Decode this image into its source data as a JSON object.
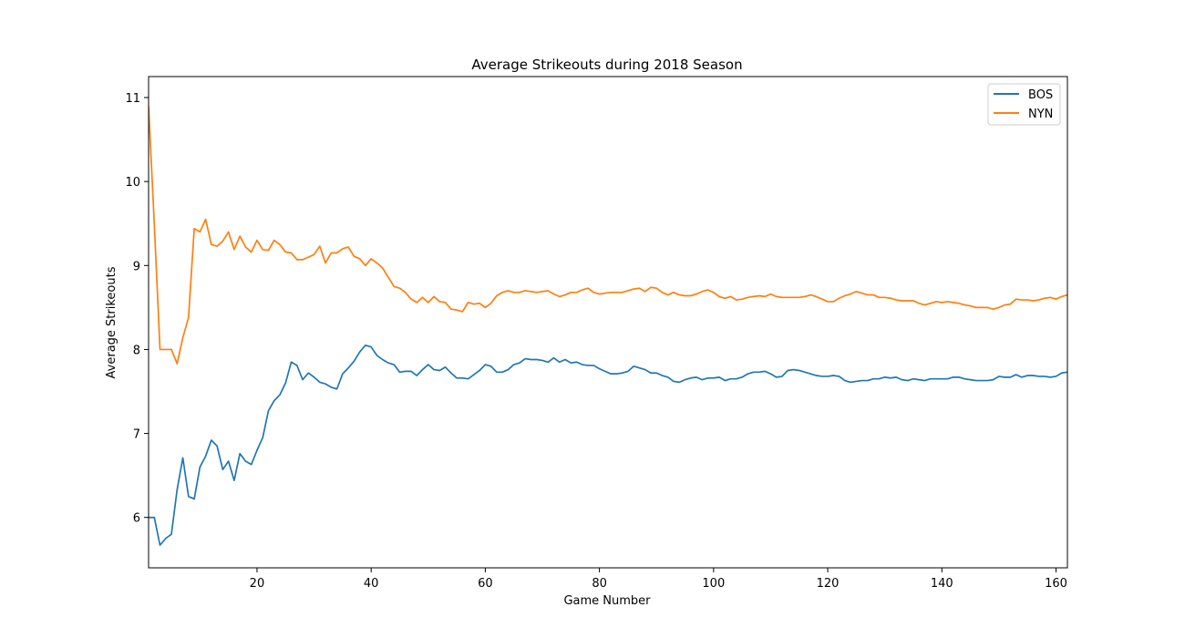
{
  "chart_data": {
    "type": "line",
    "title": "Average Strikeouts during 2018 Season",
    "xlabel": "Game Number",
    "ylabel": "Average Strikeouts",
    "xlim": [
      1,
      162
    ],
    "ylim": [
      5.4,
      11.25
    ],
    "xticks": [
      20,
      40,
      60,
      80,
      100,
      120,
      140,
      160
    ],
    "yticks": [
      6,
      7,
      8,
      9,
      10,
      11
    ],
    "grid": false,
    "legend_position": "top-right",
    "series": [
      {
        "name": "BOS",
        "color": "#1f77b4",
        "anchors": [
          [
            1,
            6.0
          ],
          [
            2,
            6.0
          ],
          [
            3,
            5.67
          ],
          [
            4,
            5.75
          ],
          [
            5,
            5.8
          ],
          [
            6,
            6.33
          ],
          [
            7,
            6.71
          ],
          [
            8,
            6.25
          ],
          [
            9,
            6.22
          ],
          [
            10,
            6.6
          ],
          [
            11,
            6.73
          ],
          [
            12,
            6.92
          ],
          [
            13,
            6.85
          ],
          [
            14,
            6.57
          ],
          [
            15,
            6.67
          ],
          [
            16,
            6.44
          ],
          [
            17,
            6.76
          ],
          [
            18,
            6.67
          ],
          [
            19,
            6.63
          ],
          [
            20,
            6.8
          ],
          [
            21,
            6.95
          ],
          [
            22,
            7.27
          ],
          [
            23,
            7.39
          ],
          [
            24,
            7.46
          ],
          [
            25,
            7.6
          ],
          [
            26,
            7.85
          ],
          [
            27,
            7.81
          ],
          [
            28,
            7.64
          ],
          [
            29,
            7.72
          ],
          [
            30,
            7.67
          ],
          [
            31,
            7.61
          ],
          [
            32,
            7.59
          ],
          [
            33,
            7.55
          ],
          [
            34,
            7.53
          ],
          [
            35,
            7.71
          ],
          [
            36,
            7.78
          ],
          [
            37,
            7.86
          ],
          [
            38,
            7.97
          ],
          [
            39,
            8.05
          ],
          [
            40,
            8.03
          ],
          [
            41,
            7.93
          ],
          [
            42,
            7.88
          ],
          [
            43,
            7.84
          ],
          [
            44,
            7.82
          ],
          [
            45,
            7.73
          ],
          [
            46,
            7.74
          ],
          [
            47,
            7.74
          ],
          [
            48,
            7.69
          ],
          [
            49,
            7.76
          ],
          [
            50,
            7.82
          ],
          [
            51,
            7.76
          ],
          [
            52,
            7.75
          ],
          [
            53,
            7.79
          ],
          [
            54,
            7.72
          ],
          [
            55,
            7.66
          ],
          [
            56,
            7.66
          ],
          [
            57,
            7.65
          ],
          [
            58,
            7.7
          ],
          [
            59,
            7.75
          ],
          [
            60,
            7.82
          ],
          [
            61,
            7.8
          ],
          [
            62,
            7.73
          ],
          [
            63,
            7.73
          ],
          [
            64,
            7.76
          ],
          [
            65,
            7.82
          ],
          [
            66,
            7.84
          ],
          [
            67,
            7.89
          ],
          [
            68,
            7.88
          ],
          [
            69,
            7.88
          ],
          [
            70,
            7.87
          ],
          [
            71,
            7.85
          ],
          [
            72,
            7.9
          ],
          [
            73,
            7.85
          ],
          [
            74,
            7.88
          ],
          [
            75,
            7.84
          ],
          [
            76,
            7.85
          ],
          [
            77,
            7.82
          ],
          [
            78,
            7.81
          ],
          [
            79,
            7.81
          ],
          [
            80,
            7.77
          ],
          [
            81,
            7.74
          ],
          [
            82,
            7.71
          ],
          [
            83,
            7.71
          ],
          [
            84,
            7.72
          ],
          [
            85,
            7.74
          ],
          [
            86,
            7.8
          ],
          [
            87,
            7.78
          ],
          [
            88,
            7.76
          ],
          [
            89,
            7.72
          ],
          [
            90,
            7.72
          ],
          [
            91,
            7.69
          ],
          [
            92,
            7.67
          ],
          [
            93,
            7.62
          ],
          [
            94,
            7.61
          ],
          [
            95,
            7.64
          ],
          [
            96,
            7.66
          ],
          [
            97,
            7.67
          ],
          [
            98,
            7.64
          ],
          [
            99,
            7.66
          ],
          [
            100,
            7.66
          ],
          [
            101,
            7.67
          ],
          [
            102,
            7.63
          ],
          [
            103,
            7.65
          ],
          [
            104,
            7.65
          ],
          [
            105,
            7.67
          ],
          [
            106,
            7.71
          ],
          [
            107,
            7.73
          ],
          [
            108,
            7.73
          ],
          [
            109,
            7.74
          ],
          [
            110,
            7.71
          ],
          [
            111,
            7.67
          ],
          [
            112,
            7.68
          ],
          [
            113,
            7.75
          ],
          [
            114,
            7.76
          ],
          [
            115,
            7.75
          ],
          [
            116,
            7.73
          ],
          [
            117,
            7.71
          ],
          [
            118,
            7.69
          ],
          [
            119,
            7.68
          ],
          [
            120,
            7.68
          ],
          [
            121,
            7.69
          ],
          [
            122,
            7.68
          ],
          [
            123,
            7.63
          ],
          [
            124,
            7.61
          ],
          [
            125,
            7.62
          ],
          [
            126,
            7.63
          ],
          [
            127,
            7.63
          ],
          [
            128,
            7.65
          ],
          [
            129,
            7.65
          ],
          [
            130,
            7.67
          ],
          [
            131,
            7.66
          ],
          [
            132,
            7.67
          ],
          [
            133,
            7.64
          ],
          [
            134,
            7.63
          ],
          [
            135,
            7.65
          ],
          [
            136,
            7.64
          ],
          [
            137,
            7.63
          ],
          [
            138,
            7.65
          ],
          [
            139,
            7.65
          ],
          [
            140,
            7.65
          ],
          [
            141,
            7.65
          ],
          [
            142,
            7.67
          ],
          [
            143,
            7.67
          ],
          [
            144,
            7.65
          ],
          [
            145,
            7.64
          ],
          [
            146,
            7.63
          ],
          [
            147,
            7.63
          ],
          [
            148,
            7.63
          ],
          [
            149,
            7.64
          ],
          [
            150,
            7.68
          ],
          [
            151,
            7.67
          ],
          [
            152,
            7.67
          ],
          [
            153,
            7.7
          ],
          [
            154,
            7.67
          ],
          [
            155,
            7.69
          ],
          [
            156,
            7.69
          ],
          [
            157,
            7.68
          ],
          [
            158,
            7.68
          ],
          [
            159,
            7.67
          ],
          [
            160,
            7.68
          ],
          [
            161,
            7.72
          ],
          [
            162,
            7.73
          ]
        ]
      },
      {
        "name": "NYN",
        "color": "#ff7f0e",
        "anchors": [
          [
            1,
            10.9
          ],
          [
            2,
            9.5
          ],
          [
            3,
            8.0
          ],
          [
            4,
            8.0
          ],
          [
            5,
            8.0
          ],
          [
            6,
            7.83
          ],
          [
            7,
            8.14
          ],
          [
            8,
            8.38
          ],
          [
            9,
            9.44
          ],
          [
            10,
            9.4
          ],
          [
            11,
            9.55
          ],
          [
            12,
            9.25
          ],
          [
            13,
            9.23
          ],
          [
            14,
            9.29
          ],
          [
            15,
            9.4
          ],
          [
            16,
            9.19
          ],
          [
            17,
            9.35
          ],
          [
            18,
            9.22
          ],
          [
            19,
            9.16
          ],
          [
            20,
            9.3
          ],
          [
            21,
            9.19
          ],
          [
            22,
            9.18
          ],
          [
            23,
            9.3
          ],
          [
            24,
            9.25
          ],
          [
            25,
            9.16
          ],
          [
            26,
            9.15
          ],
          [
            27,
            9.07
          ],
          [
            28,
            9.07
          ],
          [
            29,
            9.1
          ],
          [
            30,
            9.13
          ],
          [
            31,
            9.23
          ],
          [
            32,
            9.03
          ],
          [
            33,
            9.15
          ],
          [
            34,
            9.15
          ],
          [
            35,
            9.2
          ],
          [
            36,
            9.22
          ],
          [
            37,
            9.11
          ],
          [
            38,
            9.08
          ],
          [
            39,
            9.0
          ],
          [
            40,
            9.08
          ],
          [
            41,
            9.03
          ],
          [
            42,
            8.97
          ],
          [
            43,
            8.86
          ],
          [
            44,
            8.75
          ],
          [
            45,
            8.73
          ],
          [
            46,
            8.68
          ],
          [
            47,
            8.6
          ],
          [
            48,
            8.56
          ],
          [
            49,
            8.62
          ],
          [
            50,
            8.56
          ],
          [
            51,
            8.63
          ],
          [
            52,
            8.57
          ],
          [
            53,
            8.56
          ],
          [
            54,
            8.48
          ],
          [
            55,
            8.47
          ],
          [
            56,
            8.45
          ],
          [
            57,
            8.56
          ],
          [
            58,
            8.54
          ],
          [
            59,
            8.55
          ],
          [
            60,
            8.5
          ],
          [
            61,
            8.55
          ],
          [
            62,
            8.64
          ],
          [
            63,
            8.68
          ],
          [
            64,
            8.7
          ],
          [
            65,
            8.68
          ],
          [
            66,
            8.68
          ],
          [
            67,
            8.7
          ],
          [
            68,
            8.69
          ],
          [
            69,
            8.68
          ],
          [
            70,
            8.69
          ],
          [
            71,
            8.7
          ],
          [
            72,
            8.66
          ],
          [
            73,
            8.63
          ],
          [
            74,
            8.65
          ],
          [
            75,
            8.68
          ],
          [
            76,
            8.68
          ],
          [
            77,
            8.71
          ],
          [
            78,
            8.73
          ],
          [
            79,
            8.68
          ],
          [
            80,
            8.66
          ],
          [
            81,
            8.67
          ],
          [
            82,
            8.68
          ],
          [
            83,
            8.68
          ],
          [
            84,
            8.68
          ],
          [
            85,
            8.7
          ],
          [
            86,
            8.72
          ],
          [
            87,
            8.73
          ],
          [
            88,
            8.69
          ],
          [
            89,
            8.74
          ],
          [
            90,
            8.73
          ],
          [
            91,
            8.68
          ],
          [
            92,
            8.65
          ],
          [
            93,
            8.68
          ],
          [
            94,
            8.65
          ],
          [
            95,
            8.64
          ],
          [
            96,
            8.64
          ],
          [
            97,
            8.66
          ],
          [
            98,
            8.69
          ],
          [
            99,
            8.71
          ],
          [
            100,
            8.68
          ],
          [
            101,
            8.63
          ],
          [
            102,
            8.61
          ],
          [
            103,
            8.63
          ],
          [
            104,
            8.59
          ],
          [
            105,
            8.6
          ],
          [
            106,
            8.62
          ],
          [
            107,
            8.63
          ],
          [
            108,
            8.64
          ],
          [
            109,
            8.63
          ],
          [
            110,
            8.66
          ],
          [
            111,
            8.63
          ],
          [
            112,
            8.62
          ],
          [
            113,
            8.62
          ],
          [
            114,
            8.62
          ],
          [
            115,
            8.62
          ],
          [
            116,
            8.63
          ],
          [
            117,
            8.65
          ],
          [
            118,
            8.63
          ],
          [
            119,
            8.6
          ],
          [
            120,
            8.57
          ],
          [
            121,
            8.57
          ],
          [
            122,
            8.61
          ],
          [
            123,
            8.64
          ],
          [
            124,
            8.66
          ],
          [
            125,
            8.69
          ],
          [
            126,
            8.67
          ],
          [
            127,
            8.65
          ],
          [
            128,
            8.65
          ],
          [
            129,
            8.62
          ],
          [
            130,
            8.62
          ],
          [
            131,
            8.61
          ],
          [
            132,
            8.59
          ],
          [
            133,
            8.58
          ],
          [
            134,
            8.58
          ],
          [
            135,
            8.58
          ],
          [
            136,
            8.55
          ],
          [
            137,
            8.53
          ],
          [
            138,
            8.55
          ],
          [
            139,
            8.57
          ],
          [
            140,
            8.56
          ],
          [
            141,
            8.57
          ],
          [
            142,
            8.56
          ],
          [
            143,
            8.55
          ],
          [
            144,
            8.53
          ],
          [
            145,
            8.52
          ],
          [
            146,
            8.5
          ],
          [
            147,
            8.5
          ],
          [
            148,
            8.5
          ],
          [
            149,
            8.48
          ],
          [
            150,
            8.5
          ],
          [
            151,
            8.53
          ],
          [
            152,
            8.54
          ],
          [
            153,
            8.6
          ],
          [
            154,
            8.59
          ],
          [
            155,
            8.59
          ],
          [
            156,
            8.58
          ],
          [
            157,
            8.59
          ],
          [
            158,
            8.61
          ],
          [
            159,
            8.62
          ],
          [
            160,
            8.6
          ],
          [
            161,
            8.63
          ],
          [
            162,
            8.65
          ]
        ]
      }
    ]
  }
}
